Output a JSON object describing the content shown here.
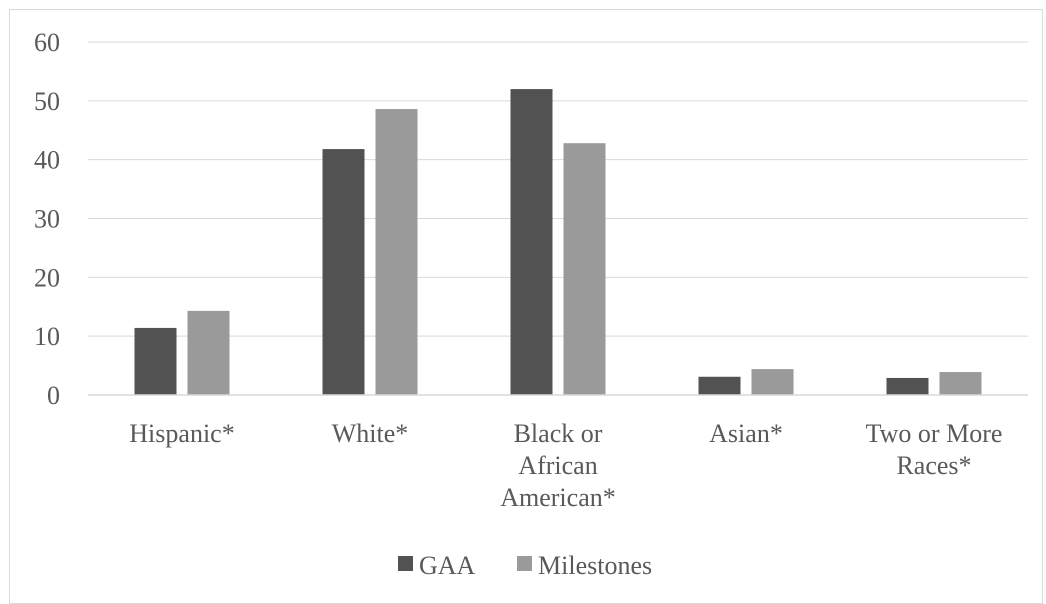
{
  "chart_data": {
    "type": "bar",
    "categories": [
      [
        "Hispanic*"
      ],
      [
        "White*"
      ],
      [
        "Black or",
        "African",
        "American*"
      ],
      [
        "Asian*"
      ],
      [
        "Two or More",
        "Races*"
      ]
    ],
    "series": [
      {
        "name": "GAA",
        "values": [
          11.4,
          41.8,
          52.0,
          3.1,
          2.9
        ],
        "color": "#525252"
      },
      {
        "name": "Milestones",
        "values": [
          14.3,
          48.6,
          42.8,
          4.4,
          3.9
        ],
        "color": "#9a9a9a"
      }
    ],
    "y_ticks": [
      "0",
      "10",
      "20",
      "30",
      "40",
      "50",
      "60"
    ],
    "ylim": [
      0,
      60
    ],
    "grid": true,
    "gridline_color": "#d9d9d9",
    "legend_position": "bottom"
  }
}
